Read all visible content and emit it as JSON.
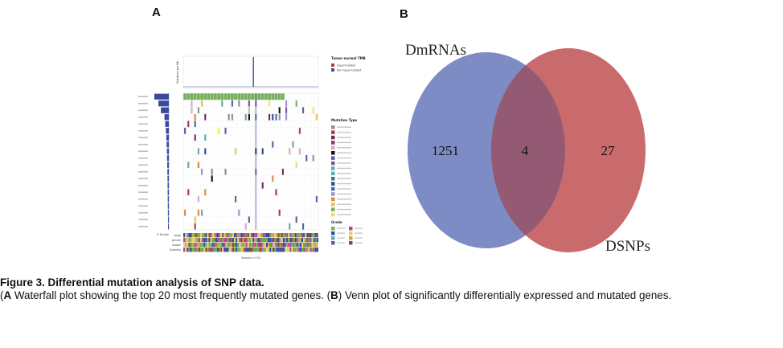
{
  "panels": {
    "a_label": "A",
    "b_label": "B"
  },
  "waterfall": {
    "top_axis_label": "Mutations per Mb",
    "left_axis_label": "% Mutate",
    "bottom_label": "Sample n=134",
    "legend_title_1": "Tumor-normal TMB",
    "legend_1_items": [
      "Hypermutated",
      "Non-hypermutated"
    ],
    "legend_1_colors": [
      "#c0392b",
      "#3b4aa0"
    ],
    "legend_title_2": "Mutation Type",
    "mutation_colors": [
      "#8f8f8f",
      "#b23a48",
      "#6b2d5c",
      "#a4305e",
      "#d7a6c8",
      "#111111",
      "#5a5d9e",
      "#7c4f9f",
      "#6aa6a3",
      "#4fb3ad",
      "#4d6a8c",
      "#2a4f8a",
      "#4067b1",
      "#9e8fc9",
      "#d98c3a",
      "#e7c24b",
      "#7cae52",
      "#ede267"
    ],
    "legend_title_3": "Grade",
    "clinical_row_labels": [
      "stage",
      "gender",
      "stage2",
      "diabetes"
    ],
    "heat_colors": [
      "#77b05d",
      "#3b4aa0",
      "#8a4a2f",
      "#c9a646",
      "#6c9e3c",
      "#b8439b",
      "#e0d36d"
    ]
  },
  "venn": {
    "left_label": "DmRNAs",
    "right_label": "DSNPs",
    "left_only": "1251",
    "overlap": "4",
    "right_only": "27",
    "left_color": "#7d8cc4",
    "right_color": "#c96b6d",
    "overlap_color": "#955a73"
  },
  "caption": {
    "title": "Figure 3. Differential mutation analysis of SNP data.",
    "a_marker": "A",
    "a_text": " Waterfall plot showing the top 20 most frequently mutated genes. (",
    "b_marker": "B",
    "b_text": ") Venn plot of significantly differentially expressed and mutated genes."
  }
}
